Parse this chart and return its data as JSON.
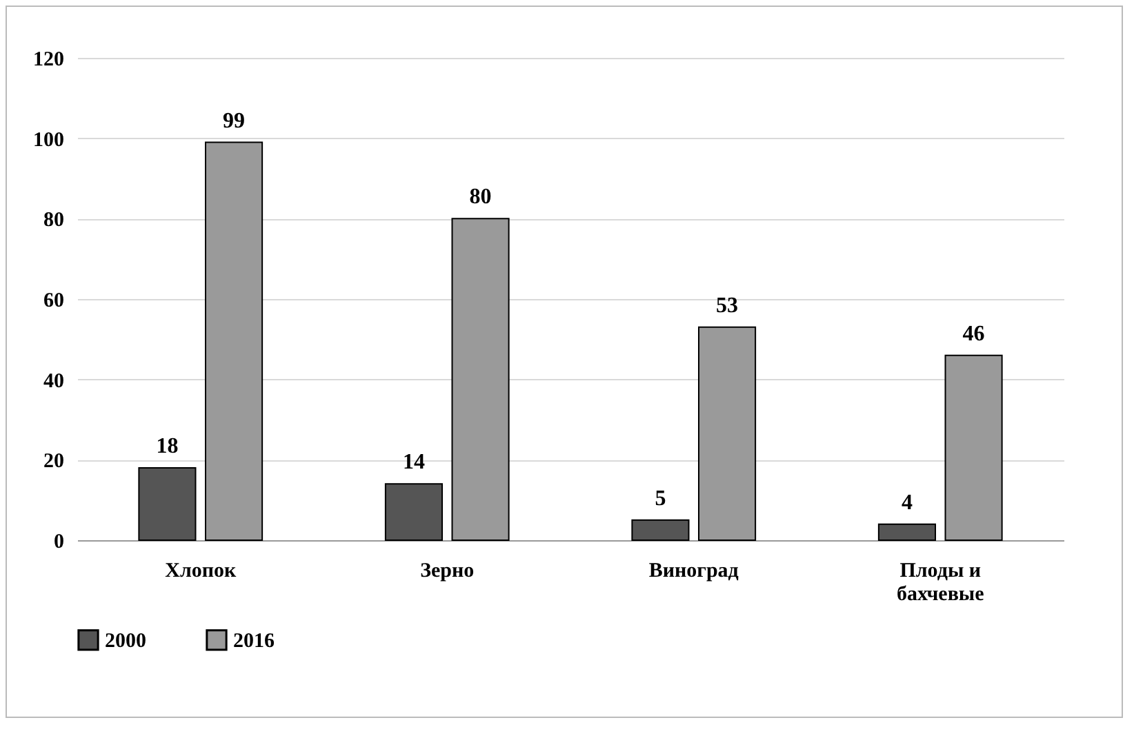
{
  "chart_data": {
    "type": "bar",
    "categories": [
      "Хлопок",
      "Зерно",
      "Виноград",
      "Плоды и бахчевые"
    ],
    "series": [
      {
        "name": "2000",
        "color": "#555555",
        "values": [
          18,
          14,
          5,
          4
        ]
      },
      {
        "name": "2016",
        "color": "#9a9a9a",
        "values": [
          99,
          80,
          53,
          46
        ]
      }
    ],
    "ylim": [
      0,
      120
    ],
    "yticks": [
      0,
      20,
      40,
      60,
      80,
      100,
      120
    ],
    "grid": "y",
    "legend": "bottom",
    "data_labels": true
  }
}
